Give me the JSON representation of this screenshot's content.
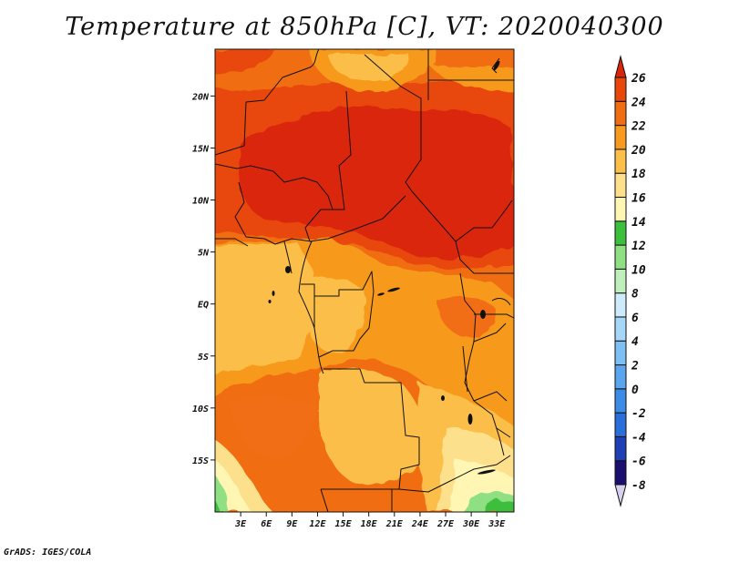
{
  "title": "Temperature at 850hPa [C], VT: 2020040300",
  "footer": "GrADS: IGES/COLA",
  "map": {
    "variable": "Temperature at 850hPa",
    "units": "C",
    "valid_time": "2020040300",
    "lon_range": [
      0,
      35
    ],
    "lat_range": [
      -20,
      24.5
    ],
    "lat_ticks": [
      "20N",
      "15N",
      "10N",
      "5N",
      "EQ",
      "5S",
      "10S",
      "15S"
    ],
    "lon_ticks": [
      "3E",
      "6E",
      "9E",
      "12E",
      "15E",
      "18E",
      "21E",
      "24E",
      "27E",
      "30E",
      "33E"
    ]
  },
  "colorbar": {
    "levels": [
      "-8",
      "-6",
      "-4",
      "-2",
      "0",
      "2",
      "4",
      "6",
      "8",
      "10",
      "12",
      "14",
      "16",
      "18",
      "20",
      "22",
      "24",
      "26"
    ],
    "colors": [
      "#d7d0ef",
      "#1a0f6e",
      "#1f3fb4",
      "#2a6fd9",
      "#3c8be6",
      "#5aa5ee",
      "#7ec0f4",
      "#a6d6f8",
      "#cdebfb",
      "#bff0bb",
      "#8ee083",
      "#3cbf3c",
      "#fff6b4",
      "#fde08c",
      "#fbbf4a",
      "#f79a1e",
      "#f16d12",
      "#e8460a",
      "#d9250a"
    ]
  }
}
